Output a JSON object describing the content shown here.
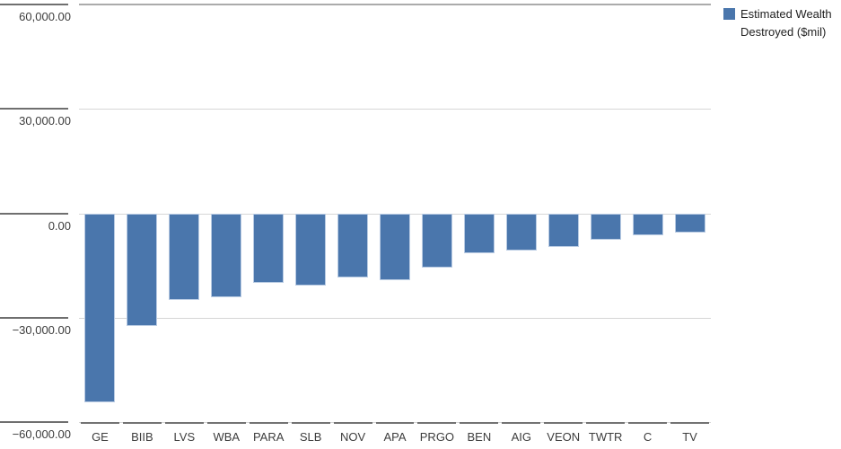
{
  "chart_data": {
    "type": "bar",
    "title": "",
    "xlabel": "",
    "ylabel": "",
    "categories": [
      "GE",
      "BIIB",
      "LVS",
      "WBA",
      "PARA",
      "SLB",
      "NOV",
      "APA",
      "PRGO",
      "BEN",
      "AIG",
      "VEON",
      "TWTR",
      "C",
      "TV"
    ],
    "series": [
      {
        "name": "Estimated Wealth Destroyed ($mil)",
        "values": [
          -54300,
          -32400,
          -24800,
          -24100,
          -20000,
          -20800,
          -18500,
          -19200,
          -15600,
          -11500,
          -10700,
          -9700,
          -7700,
          -6300,
          -5500
        ]
      }
    ],
    "ylim": [
      -60000,
      60000
    ],
    "ytick_interval": 30000,
    "yticks": [
      60000,
      30000,
      0,
      -30000,
      -60000
    ],
    "ytick_labels": [
      "60,000.00",
      "30,000.00",
      "0.00",
      "−30,000.00",
      "−60,000.00"
    ],
    "grid": true,
    "bar_color": "#4a76ac",
    "bar_border_color": "#b9cbe3",
    "legend": {
      "position": "top-right",
      "label": "Estimated Wealth Destroyed ($mil)",
      "swatch_color": "#4a76ac"
    }
  }
}
